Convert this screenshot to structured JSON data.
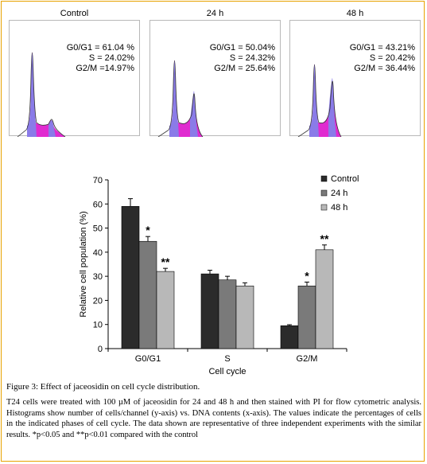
{
  "histograms": [
    {
      "title": "Control",
      "g0g1": "G0/G1 = 61.04 %",
      "s": "S = 24.02%",
      "g2m": "G2/M =14.97%"
    },
    {
      "title": "24 h",
      "g0g1": "G0/G1 = 50.04%",
      "s": "S = 24.32%",
      "g2m": "G2/M = 25.64%"
    },
    {
      "title": "48 h",
      "g0g1": "G0/G1 = 43.21%",
      "s": "S = 20.42%",
      "g2m": "G2/M = 36.44%"
    }
  ],
  "chart_data": {
    "type": "bar",
    "categories": [
      "G0/G1",
      "S",
      "G2/M"
    ],
    "series": [
      {
        "name": "Control",
        "color": "#2b2b2b",
        "values": [
          59,
          31,
          9.5
        ],
        "errors": [
          3.2,
          1.5,
          0.4
        ],
        "marks": [
          "",
          "",
          ""
        ]
      },
      {
        "name": "24 h",
        "color": "#7a7a7a",
        "values": [
          44.5,
          28.5,
          26
        ],
        "errors": [
          2.0,
          1.5,
          1.6
        ],
        "marks": [
          "*",
          "",
          "*"
        ]
      },
      {
        "name": "48 h",
        "color": "#b8b8b8",
        "values": [
          32,
          26,
          41
        ],
        "errors": [
          1.3,
          1.3,
          2.0
        ],
        "marks": [
          "**",
          "",
          "**"
        ]
      }
    ],
    "xlabel": "Cell cycle",
    "ylabel": "Relative cell population (%)",
    "ylim": [
      0,
      70
    ],
    "yticks": [
      0,
      10,
      20,
      30,
      40,
      50,
      60,
      70
    ],
    "legend_position": "top-right",
    "grid": false
  },
  "caption": {
    "title": "Figure 3: Effect of jaceosidin on cell cycle distribution.",
    "body": "T24 cells were treated with 100 µM of jaceosidin for 24 and 48 h and then stained with PI for flow cytometric analysis. Histograms show number of cells/channel (y-axis) vs. DNA contents (x-axis). The values indicate the percentages of cells in the indicated phases of cell cycle. The data shown are representative of three independent experiments with the similar results. *p<0.05 and **p<0.01 compared with the control"
  }
}
